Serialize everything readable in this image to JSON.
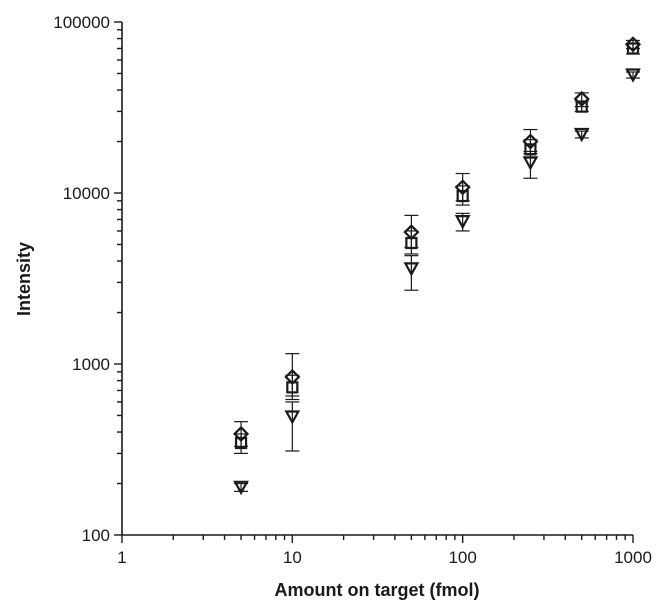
{
  "chart_data": {
    "type": "scatter",
    "xlabel": "Amount on target (fmol)",
    "ylabel": "Intensity",
    "x_scale": "log",
    "y_scale": "log",
    "xlim": [
      1,
      1000
    ],
    "ylim": [
      100,
      100000
    ],
    "x_ticks": [
      "1",
      "10",
      "100",
      "1000"
    ],
    "y_ticks": [
      "100",
      "1000",
      "10000",
      "100000"
    ],
    "grid": false,
    "legend": "none",
    "series": [
      {
        "marker": "diamond",
        "points": [
          {
            "x": 5,
            "y": 390,
            "err_low": 330,
            "err_high": 460
          },
          {
            "x": 10,
            "y": 840,
            "err_low": 650,
            "err_high": 1150
          },
          {
            "x": 50,
            "y": 5900,
            "err_low": 4800,
            "err_high": 7400
          },
          {
            "x": 100,
            "y": 10800,
            "err_low": 9000,
            "err_high": 13000
          },
          {
            "x": 250,
            "y": 20000,
            "err_low": 17000,
            "err_high": 23500
          },
          {
            "x": 500,
            "y": 35500,
            "err_low": 32000,
            "err_high": 38500
          },
          {
            "x": 1000,
            "y": 74000,
            "err_low": 70000,
            "err_high": 78000
          }
        ]
      },
      {
        "marker": "square",
        "points": [
          {
            "x": 5,
            "y": 345,
            "err_low": 300,
            "err_high": 390
          },
          {
            "x": 10,
            "y": 730,
            "err_low": 620,
            "err_high": 860
          },
          {
            "x": 50,
            "y": 5100,
            "err_low": 4400,
            "err_high": 6000
          },
          {
            "x": 100,
            "y": 9600,
            "err_low": 8500,
            "err_high": 11000
          },
          {
            "x": 250,
            "y": 18000,
            "err_low": 16000,
            "err_high": 20500
          },
          {
            "x": 500,
            "y": 32000,
            "err_low": 30000,
            "err_high": 34500
          },
          {
            "x": 1000,
            "y": 70000,
            "err_low": 65000,
            "err_high": 75000
          }
        ]
      },
      {
        "marker": "triangle-down",
        "points": [
          {
            "x": 5,
            "y": 190,
            "err_low": 180,
            "err_high": 200
          },
          {
            "x": 10,
            "y": 490,
            "err_low": 310,
            "err_high": 600
          },
          {
            "x": 50,
            "y": 3600,
            "err_low": 2700,
            "err_high": 4300
          },
          {
            "x": 100,
            "y": 6800,
            "err_low": 6000,
            "err_high": 7600
          },
          {
            "x": 250,
            "y": 15000,
            "err_low": 12200,
            "err_high": 17500
          },
          {
            "x": 500,
            "y": 22000,
            "err_low": 21000,
            "err_high": 23000
          },
          {
            "x": 1000,
            "y": 49000,
            "err_low": 47000,
            "err_high": 51000
          }
        ]
      }
    ],
    "colors": {
      "ink": "#1a1a1a",
      "background": "#ffffff"
    }
  }
}
